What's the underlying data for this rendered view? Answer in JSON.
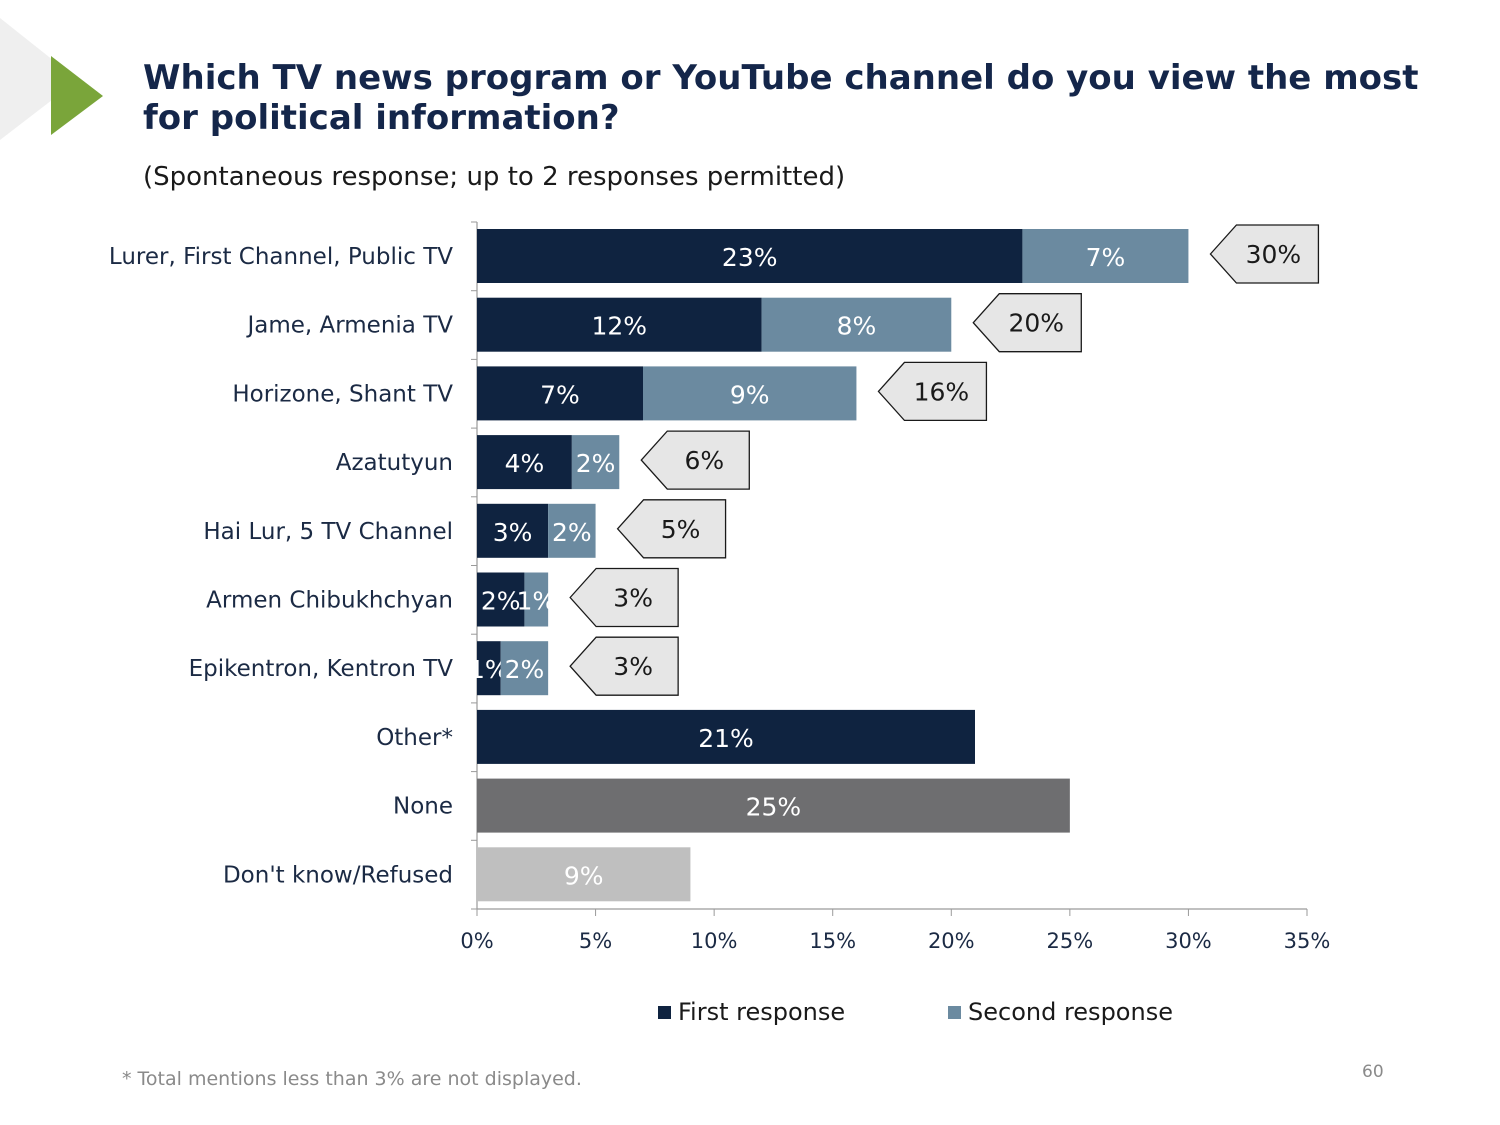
{
  "title": "Which TV news program or YouTube channel do you view the most for political information?",
  "subtitle": "(Spontaneous response; up to 2 responses permitted)",
  "footnote": "* Total mentions less than 3% are not displayed.",
  "page_number": "60",
  "colors": {
    "first_response": "#0f2340",
    "second_response": "#6b8aa0",
    "none": "#6e6e70",
    "dont_know": "#bfbfbf",
    "callout_fill": "#e6e6e6",
    "accent": "#7aa53a"
  },
  "chart_data": {
    "type": "bar",
    "orientation": "horizontal",
    "stacked": true,
    "categories": [
      "Lurer, First Channel, Public TV",
      "Jame, Armenia TV",
      "Horizone, Shant TV",
      "Azatutyun",
      "Hai Lur, 5 TV Channel",
      "Armen Chibukhchyan",
      "Epikentron, Kentron TV",
      "Other*",
      "None",
      "Don't know/Refused"
    ],
    "series": [
      {
        "name": "First response",
        "values": [
          23,
          12,
          7,
          4,
          3,
          2,
          1,
          21,
          25,
          9
        ],
        "labels": [
          "23%",
          "12%",
          "7%",
          "4%",
          "3%",
          "2%",
          "1%",
          "21%",
          "25%",
          "9%"
        ]
      },
      {
        "name": "Second response",
        "values": [
          7,
          8,
          9,
          2,
          2,
          1,
          2,
          null,
          null,
          null
        ],
        "labels": [
          "7%",
          "8%",
          "9%",
          "2%",
          "2%",
          "1%",
          "2%",
          "",
          "",
          ""
        ]
      }
    ],
    "totals": [
      "30%",
      "20%",
      "16%",
      "6%",
      "5%",
      "3%",
      "3%",
      "",
      "",
      ""
    ],
    "xlim": [
      0,
      35
    ],
    "xticks": [
      "0%",
      "5%",
      "10%",
      "15%",
      "20%",
      "25%",
      "30%",
      "35%"
    ],
    "grid": false,
    "legend_position": "bottom",
    "legend": [
      "First response",
      "Second response"
    ]
  }
}
